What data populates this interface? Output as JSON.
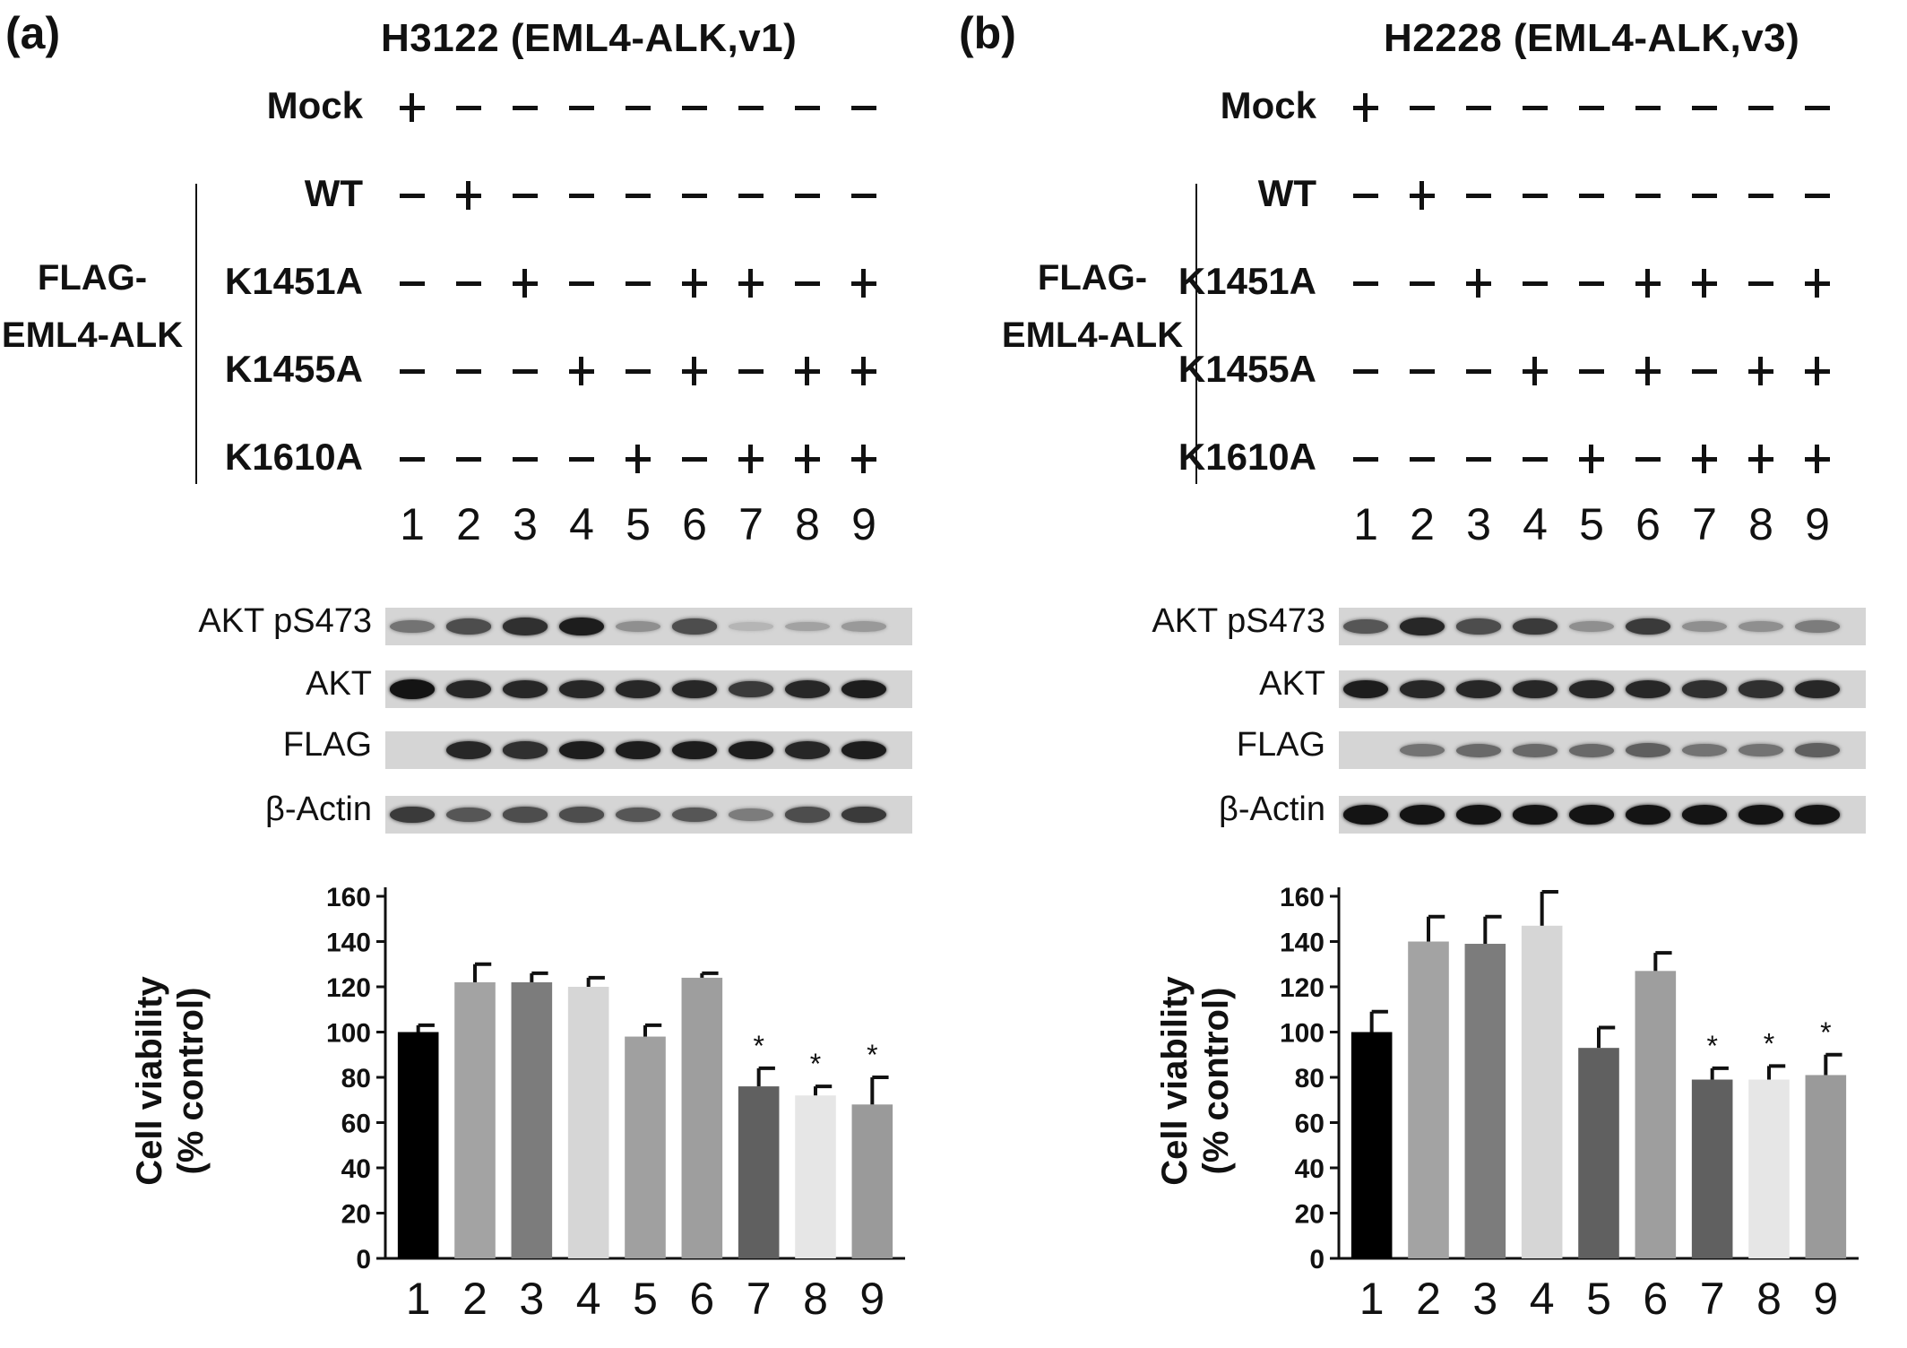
{
  "panels": [
    {
      "label": "(a)",
      "title": "H3122  (EML4-ALK,v1)",
      "rows": [
        {
          "label": "Mock",
          "signs": [
            "+",
            "−",
            "−",
            "−",
            "−",
            "−",
            "−",
            "−",
            "−"
          ]
        },
        {
          "label": "WT",
          "signs": [
            "−",
            "+",
            "−",
            "−",
            "−",
            "−",
            "−",
            "−",
            "−"
          ]
        },
        {
          "label": "K1451A",
          "signs": [
            "−",
            "−",
            "+",
            "−",
            "−",
            "+",
            "+",
            "−",
            "+"
          ]
        },
        {
          "label": "K1455A",
          "signs": [
            "−",
            "−",
            "−",
            "+",
            "−",
            "+",
            "−",
            "+",
            "+"
          ]
        },
        {
          "label": "K1610A",
          "signs": [
            "−",
            "−",
            "−",
            "−",
            "+",
            "−",
            "+",
            "+",
            "+"
          ]
        }
      ],
      "group_label": "FLAG-\nEML4-ALK",
      "lanes": [
        "1",
        "2",
        "3",
        "4",
        "5",
        "6",
        "7",
        "8",
        "9"
      ],
      "blots": [
        {
          "label": "AKT pS473",
          "intensity": [
            0.45,
            0.65,
            0.8,
            0.9,
            0.3,
            0.65,
            0.1,
            0.2,
            0.25
          ]
        },
        {
          "label": "AKT",
          "intensity": [
            0.95,
            0.85,
            0.85,
            0.85,
            0.85,
            0.85,
            0.75,
            0.85,
            0.9
          ]
        },
        {
          "label": "FLAG",
          "intensity": [
            0.0,
            0.85,
            0.8,
            0.9,
            0.9,
            0.9,
            0.9,
            0.85,
            0.9
          ]
        },
        {
          "label": "β-Actin",
          "intensity": [
            0.75,
            0.6,
            0.65,
            0.65,
            0.6,
            0.6,
            0.4,
            0.65,
            0.75
          ]
        }
      ],
      "chart_data": {
        "type": "bar",
        "ylabel": "Cell viability\n(% control)",
        "ylim": [
          0,
          160
        ],
        "yticks": [
          "0",
          "20",
          "40",
          "60",
          "80",
          "100",
          "120",
          "140",
          "160"
        ],
        "categories": [
          "1",
          "2",
          "3",
          "4",
          "5",
          "6",
          "7",
          "8",
          "9"
        ],
        "values": [
          100,
          122,
          122,
          120,
          98,
          124,
          76,
          72,
          68
        ],
        "errors": [
          3,
          8,
          4,
          4,
          5,
          2,
          8,
          4,
          12
        ],
        "significance": [
          "",
          "",
          "",
          "",
          "",
          "",
          "*",
          "*",
          "*"
        ],
        "colors": [
          "#000000",
          "#a3a3a3",
          "#7c7c7c",
          "#d6d6d6",
          "#a0a0a0",
          "#9e9e9e",
          "#606060",
          "#e6e6e6",
          "#9a9a9a"
        ]
      }
    },
    {
      "label": "(b)",
      "title": "H2228  (EML4-ALK,v3)",
      "rows": [
        {
          "label": "Mock",
          "signs": [
            "+",
            "−",
            "−",
            "−",
            "−",
            "−",
            "−",
            "−",
            "−"
          ]
        },
        {
          "label": "WT",
          "signs": [
            "−",
            "+",
            "−",
            "−",
            "−",
            "−",
            "−",
            "−",
            "−"
          ]
        },
        {
          "label": "K1451A",
          "signs": [
            "−",
            "−",
            "+",
            "−",
            "−",
            "+",
            "+",
            "−",
            "+"
          ]
        },
        {
          "label": "K1455A",
          "signs": [
            "−",
            "−",
            "−",
            "+",
            "−",
            "+",
            "−",
            "+",
            "+"
          ]
        },
        {
          "label": "K1610A",
          "signs": [
            "−",
            "−",
            "−",
            "−",
            "+",
            "−",
            "+",
            "+",
            "+"
          ]
        }
      ],
      "group_label": "FLAG-\nEML4-ALK",
      "lanes": [
        "1",
        "2",
        "3",
        "4",
        "5",
        "6",
        "7",
        "8",
        "9"
      ],
      "blots": [
        {
          "label": "AKT pS473",
          "intensity": [
            0.6,
            0.85,
            0.65,
            0.75,
            0.3,
            0.75,
            0.3,
            0.3,
            0.4
          ]
        },
        {
          "label": "AKT",
          "intensity": [
            0.9,
            0.85,
            0.85,
            0.85,
            0.85,
            0.85,
            0.8,
            0.8,
            0.85
          ]
        },
        {
          "label": "FLAG",
          "intensity": [
            0.0,
            0.45,
            0.5,
            0.5,
            0.5,
            0.55,
            0.45,
            0.45,
            0.55
          ]
        },
        {
          "label": "β-Actin",
          "intensity": [
            0.95,
            0.95,
            0.95,
            0.95,
            0.95,
            0.95,
            0.95,
            0.95,
            0.95
          ]
        }
      ],
      "chart_data": {
        "type": "bar",
        "ylabel": "Cell viability\n(% control)",
        "ylim": [
          0,
          160
        ],
        "yticks": [
          "0",
          "20",
          "40",
          "60",
          "80",
          "100",
          "120",
          "140",
          "160"
        ],
        "categories": [
          "1",
          "2",
          "3",
          "4",
          "5",
          "6",
          "7",
          "8",
          "9"
        ],
        "values": [
          100,
          140,
          139,
          147,
          93,
          127,
          79,
          79,
          81
        ],
        "errors": [
          9,
          11,
          12,
          15,
          9,
          8,
          5,
          6,
          9
        ],
        "significance": [
          "",
          "",
          "",
          "",
          "",
          "",
          "*",
          "*",
          "*"
        ],
        "colors": [
          "#000000",
          "#a3a3a3",
          "#7c7c7c",
          "#d6d6d6",
          "#606060",
          "#9e9e9e",
          "#606060",
          "#e6e6e6",
          "#9a9a9a"
        ]
      }
    }
  ]
}
